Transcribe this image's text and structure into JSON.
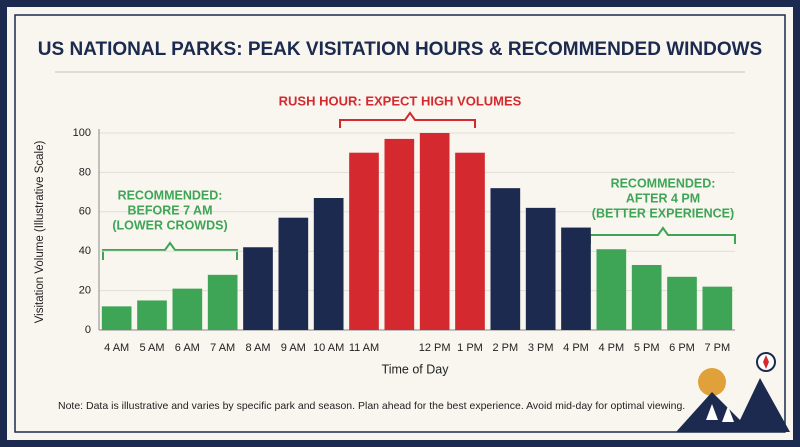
{
  "chart_data": {
    "type": "bar",
    "title": "US NATIONAL PARKS: PEAK VISITATION HOURS & RECOMMENDED WINDOWS",
    "x_label": "Time of Day",
    "y_label": "Visitation Volume (Illustrative Scale)",
    "categories": [
      "4 AM",
      "5 AM",
      "6 AM",
      "7 AM",
      "8 AM",
      "9 AM",
      "10 AM",
      "11 AM",
      null,
      "12 PM",
      "1 PM",
      "2 PM",
      "3 PM",
      "4 PM",
      "4 PM",
      "5 PM",
      "6 PM",
      "7 PM"
    ],
    "values": [
      12,
      15,
      21,
      28,
      42,
      57,
      67,
      90,
      97,
      100,
      90,
      72,
      62,
      52,
      41,
      33,
      27,
      22
    ],
    "colors": [
      "#3ea556",
      "#3ea556",
      "#3ea556",
      "#3ea556",
      "#1b2a4e",
      "#1b2a4e",
      "#1b2a4e",
      "#d42a2f",
      "#d42a2f",
      "#d42a2f",
      "#d42a2f",
      "#1b2a4e",
      "#1b2a4e",
      "#1b2a4e",
      "#3ea556",
      "#3ea556",
      "#3ea556",
      "#3ea556"
    ],
    "ylim": [
      0,
      100
    ],
    "yticks": [
      0,
      20,
      40,
      60,
      80,
      100
    ],
    "grid": true,
    "annotations": {
      "rush": "RUSH HOUR: EXPECT HIGH VOLUMES",
      "morning": [
        "RECOMMENDED:",
        "BEFORE 7 AM",
        "(LOWER CROWDS)"
      ],
      "evening": [
        "RECOMMENDED:",
        "AFTER 4 PM",
        "(BETTER EXPERIENCE)"
      ]
    },
    "note": "Note: Data is illustrative and varies by specific park and season. Plan ahead for the best experience. Avoid mid-day for optimal viewing."
  }
}
